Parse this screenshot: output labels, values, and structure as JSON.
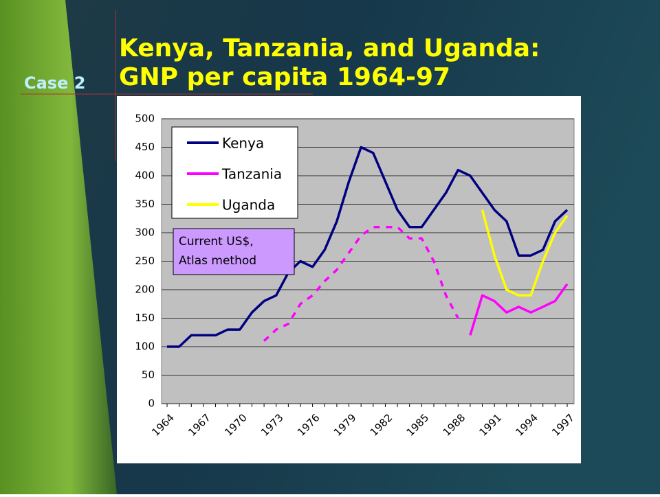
{
  "label": "Case 2",
  "chart_data": {
    "type": "line",
    "title": "Kenya, Tanzania, and Uganda:",
    "subtitle": "GNP per capita 1964-97",
    "annotation": [
      "Current US$,",
      "Atlas method"
    ],
    "categories": [
      "1964",
      null,
      null,
      "1967",
      null,
      null,
      "1970",
      null,
      null,
      "1973",
      null,
      null,
      "1976",
      null,
      null,
      "1979",
      null,
      null,
      "1982",
      null,
      null,
      "1985",
      null,
      null,
      "1988",
      null,
      null,
      "1991",
      null,
      null,
      "1994",
      null,
      null,
      "1997"
    ],
    "ylim": [
      0,
      500
    ],
    "yticks": [
      0,
      50,
      100,
      150,
      200,
      250,
      300,
      350,
      400,
      450,
      500
    ],
    "legend": "upper left",
    "series": [
      {
        "name": "Kenya",
        "color": "#000080",
        "values": [
          100,
          100,
          120,
          120,
          120,
          130,
          130,
          160,
          180,
          190,
          230,
          250,
          240,
          270,
          320,
          390,
          450,
          440,
          390,
          340,
          310,
          310,
          340,
          370,
          410,
          400,
          370,
          340,
          320,
          260,
          260,
          270,
          320,
          340
        ]
      },
      {
        "name": "Tanzania",
        "color": "#ff00ff",
        "dashed_values": [
          null,
          null,
          null,
          null,
          null,
          null,
          null,
          null,
          110,
          130,
          140,
          175,
          190,
          215,
          235,
          265,
          295,
          310,
          310,
          310,
          290,
          290,
          250,
          190,
          150,
          null,
          null,
          null,
          null,
          null,
          null,
          null,
          null,
          null
        ],
        "values": [
          null,
          null,
          null,
          null,
          null,
          null,
          null,
          null,
          null,
          null,
          null,
          null,
          null,
          null,
          null,
          null,
          null,
          null,
          null,
          null,
          null,
          null,
          null,
          null,
          null,
          120,
          190,
          180,
          160,
          170,
          160,
          170,
          180,
          210
        ]
      },
      {
        "name": "Uganda",
        "color": "#ffff00",
        "values": [
          null,
          null,
          null,
          null,
          null,
          null,
          null,
          null,
          null,
          null,
          null,
          null,
          null,
          null,
          null,
          null,
          null,
          null,
          null,
          null,
          null,
          null,
          null,
          null,
          null,
          null,
          340,
          260,
          200,
          190,
          190,
          250,
          300,
          330
        ]
      }
    ]
  }
}
